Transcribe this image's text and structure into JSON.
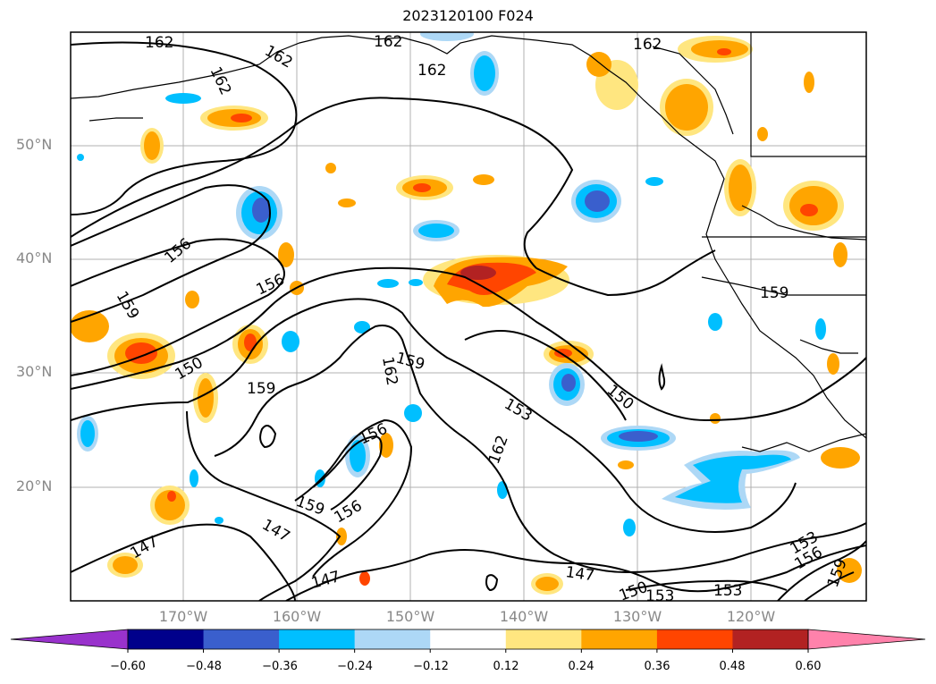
{
  "title": "2023120100 F024",
  "lat_labels": [
    "50°N",
    "40°N",
    "30°N",
    "20°N"
  ],
  "lon_labels": [
    "170°W",
    "160°W",
    "150°W",
    "140°W",
    "130°W",
    "120°W"
  ],
  "colorbar": {
    "ticks": [
      "−0.60",
      "−0.48",
      "−0.36",
      "−0.24",
      "−0.12",
      "0.12",
      "0.24",
      "0.36",
      "0.48",
      "0.60"
    ],
    "colors": [
      "#9932cc",
      "#00008b",
      "#3a5fcd",
      "#00bfff",
      "#add8f6",
      "#ffffff",
      "#ffe680",
      "#ffa500",
      "#ff4500",
      "#b22222",
      "#ff82ab"
    ]
  },
  "contour_labels": [
    "162",
    "162",
    "162",
    "162",
    "162",
    "162",
    "156",
    "156",
    "159",
    "150",
    "159",
    "162",
    "159",
    "153",
    "150",
    "156",
    "162",
    "159",
    "156",
    "147",
    "147",
    "147",
    "147",
    "150",
    "153",
    "153",
    "153",
    "156",
    "159",
    "159"
  ]
}
